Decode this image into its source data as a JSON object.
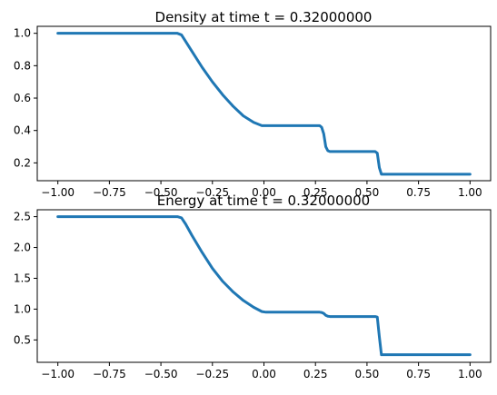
{
  "colors": {
    "series": "#1f77b4",
    "axes": "#000000",
    "background": "#ffffff"
  },
  "chart_data": [
    {
      "type": "line",
      "title": "Density at time t =      0.32000000",
      "xlabel": "",
      "ylabel": "",
      "xlim": [
        -1.1,
        1.1
      ],
      "ylim": [
        0.09,
        1.043
      ],
      "xticks": [
        -1.0,
        -0.75,
        -0.5,
        -0.25,
        0.0,
        0.25,
        0.5,
        0.75,
        1.0
      ],
      "xtick_labels": [
        "−1.00",
        "−0.75",
        "−0.50",
        "−0.25",
        "0.00",
        "0.25",
        "0.50",
        "0.75",
        "1.00"
      ],
      "yticks": [
        0.2,
        0.4,
        0.6,
        0.8,
        1.0
      ],
      "ytick_labels": [
        "0.2",
        "0.4",
        "0.6",
        "0.8",
        "1.0"
      ],
      "grid": false,
      "legend": "none",
      "series": [
        {
          "x": [
            -1.0,
            -0.42,
            -0.4,
            -0.38,
            -0.35,
            -0.3,
            -0.25,
            -0.2,
            -0.15,
            -0.1,
            -0.05,
            -0.01,
            0.01,
            0.27,
            0.28,
            0.29,
            0.3,
            0.31,
            0.32,
            0.54,
            0.55,
            0.56,
            0.57,
            1.0
          ],
          "y": [
            1.0,
            1.0,
            0.99,
            0.95,
            0.89,
            0.79,
            0.7,
            0.62,
            0.55,
            0.49,
            0.45,
            0.43,
            0.43,
            0.43,
            0.42,
            0.38,
            0.3,
            0.275,
            0.27,
            0.27,
            0.26,
            0.17,
            0.13,
            0.13
          ]
        }
      ]
    },
    {
      "type": "line",
      "title": "Energy at time t =      0.32000000",
      "xlabel": "",
      "ylabel": "",
      "xlim": [
        -1.1,
        1.1
      ],
      "ylim": [
        0.137,
        2.612
      ],
      "xticks": [
        -1.0,
        -0.75,
        -0.5,
        -0.25,
        0.0,
        0.25,
        0.5,
        0.75,
        1.0
      ],
      "xtick_labels": [
        "−1.00",
        "−0.75",
        "−0.50",
        "−0.25",
        "0.00",
        "0.25",
        "0.50",
        "0.75",
        "1.00"
      ],
      "yticks": [
        0.5,
        1.0,
        1.5,
        2.0,
        2.5
      ],
      "ytick_labels": [
        "0.5",
        "1.0",
        "1.5",
        "2.0",
        "2.5"
      ],
      "grid": false,
      "legend": "none",
      "series": [
        {
          "x": [
            -1.0,
            -0.42,
            -0.4,
            -0.38,
            -0.35,
            -0.3,
            -0.25,
            -0.2,
            -0.15,
            -0.1,
            -0.05,
            -0.01,
            0.01,
            0.27,
            0.28,
            0.29,
            0.3,
            0.31,
            0.32,
            0.54,
            0.55,
            0.56,
            0.57,
            1.0
          ],
          "y": [
            2.5,
            2.5,
            2.48,
            2.38,
            2.2,
            1.92,
            1.66,
            1.45,
            1.28,
            1.14,
            1.03,
            0.96,
            0.95,
            0.95,
            0.945,
            0.93,
            0.9,
            0.885,
            0.88,
            0.88,
            0.87,
            0.55,
            0.26,
            0.26
          ]
        }
      ]
    }
  ]
}
